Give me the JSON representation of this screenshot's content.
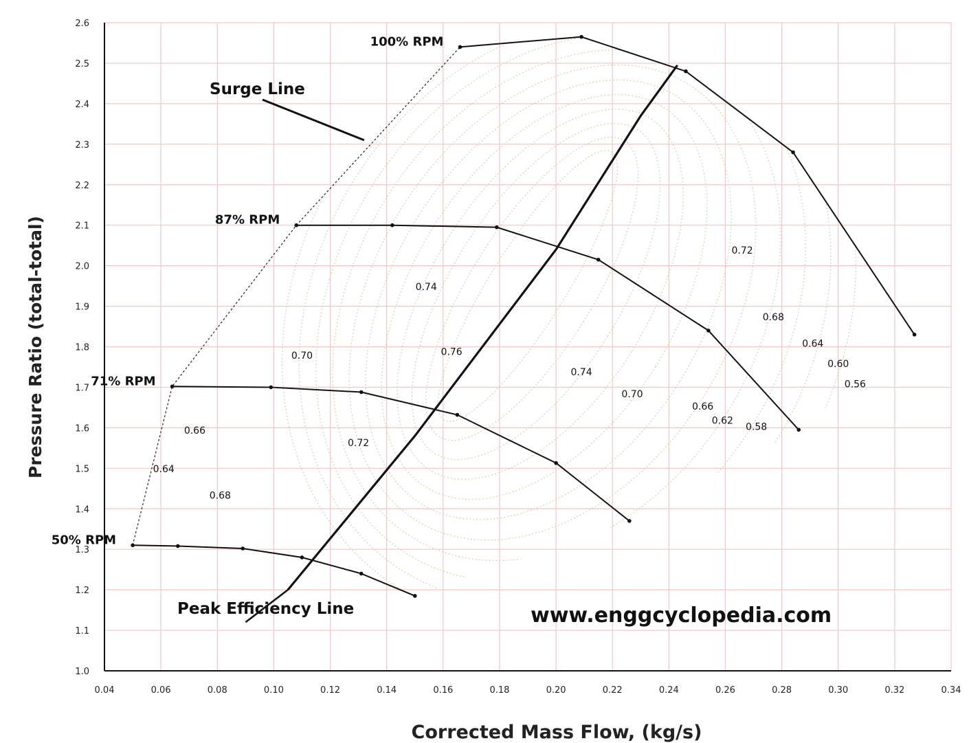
{
  "chart_data": {
    "type": "line",
    "title": "",
    "xlabel": "Corrected Mass Flow, (kg/s)",
    "ylabel": "Pressure Ratio (total-total)",
    "xlim": [
      0.04,
      0.34
    ],
    "ylim": [
      1.0,
      2.6
    ],
    "x_ticks": [
      "0.04",
      "0.06",
      "0.08",
      "0.10",
      "0.12",
      "0.14",
      "0.16",
      "0.18",
      "0.20",
      "0.22",
      "0.24",
      "0.26",
      "0.28",
      "0.30",
      "0.32",
      "0.34"
    ],
    "y_ticks": [
      "1.0",
      "1.1",
      "1.2",
      "1.3",
      "1.4",
      "1.5",
      "1.6",
      "1.7",
      "1.8",
      "1.9",
      "2.0",
      "2.1",
      "2.2",
      "2.3",
      "2.4",
      "2.5",
      "2.6"
    ],
    "grid": true,
    "colors": {
      "grid": "#f2c6c6",
      "line": "#111111",
      "contour": "#d8cfa8"
    },
    "speed_lines": [
      {
        "name": "100% RPM",
        "points": [
          [
            0.166,
            2.54
          ],
          [
            0.209,
            2.565
          ],
          [
            0.246,
            2.48
          ],
          [
            0.284,
            2.28
          ],
          [
            0.327,
            1.83
          ]
        ]
      },
      {
        "name": "87% RPM",
        "points": [
          [
            0.108,
            2.1
          ],
          [
            0.142,
            2.1
          ],
          [
            0.179,
            2.095
          ],
          [
            0.215,
            2.015
          ],
          [
            0.254,
            1.84
          ],
          [
            0.286,
            1.595
          ]
        ]
      },
      {
        "name": "71% RPM",
        "points": [
          [
            0.064,
            1.702
          ],
          [
            0.099,
            1.7
          ],
          [
            0.131,
            1.688
          ],
          [
            0.165,
            1.632
          ],
          [
            0.2,
            1.513
          ],
          [
            0.226,
            1.37
          ]
        ]
      },
      {
        "name": "50% RPM",
        "points": [
          [
            0.05,
            1.31
          ],
          [
            0.066,
            1.308
          ],
          [
            0.089,
            1.302
          ],
          [
            0.11,
            1.28
          ],
          [
            0.131,
            1.24
          ],
          [
            0.15,
            1.185
          ]
        ]
      }
    ],
    "surge_line": [
      [
        0.05,
        1.31
      ],
      [
        0.064,
        1.702
      ],
      [
        0.108,
        2.1
      ],
      [
        0.166,
        2.54
      ]
    ],
    "peak_efficiency_line": [
      [
        0.105,
        1.2
      ],
      [
        0.15,
        1.58
      ],
      [
        0.2,
        2.04
      ],
      [
        0.23,
        2.37
      ],
      [
        0.243,
        2.495
      ]
    ],
    "efficiency_labels": [
      {
        "text": "0.74",
        "x": 0.154,
        "y": 1.94
      },
      {
        "text": "0.76",
        "x": 0.163,
        "y": 1.78
      },
      {
        "text": "0.70",
        "x": 0.11,
        "y": 1.77
      },
      {
        "text": "0.66",
        "x": 0.072,
        "y": 1.585
      },
      {
        "text": "0.64",
        "x": 0.061,
        "y": 1.49
      },
      {
        "text": "0.68",
        "x": 0.081,
        "y": 1.425
      },
      {
        "text": "0.72",
        "x": 0.13,
        "y": 1.555
      },
      {
        "text": "0.74",
        "x": 0.209,
        "y": 1.73
      },
      {
        "text": "0.70",
        "x": 0.227,
        "y": 1.675
      },
      {
        "text": "0.66",
        "x": 0.252,
        "y": 1.645
      },
      {
        "text": "0.62",
        "x": 0.259,
        "y": 1.61
      },
      {
        "text": "0.58",
        "x": 0.271,
        "y": 1.595
      },
      {
        "text": "0.72",
        "x": 0.266,
        "y": 2.03
      },
      {
        "text": "0.68",
        "x": 0.277,
        "y": 1.865
      },
      {
        "text": "0.64",
        "x": 0.291,
        "y": 1.8
      },
      {
        "text": "0.60",
        "x": 0.3,
        "y": 1.75
      },
      {
        "text": "0.56",
        "x": 0.306,
        "y": 1.7
      }
    ],
    "annotations": [
      {
        "text": "Surge Line",
        "x": 0.1,
        "y": 2.45
      },
      {
        "text": "Peak Efficiency Line",
        "x": 0.09,
        "y": 1.15
      }
    ]
  },
  "watermark": "www.enggcyclopedia.com"
}
